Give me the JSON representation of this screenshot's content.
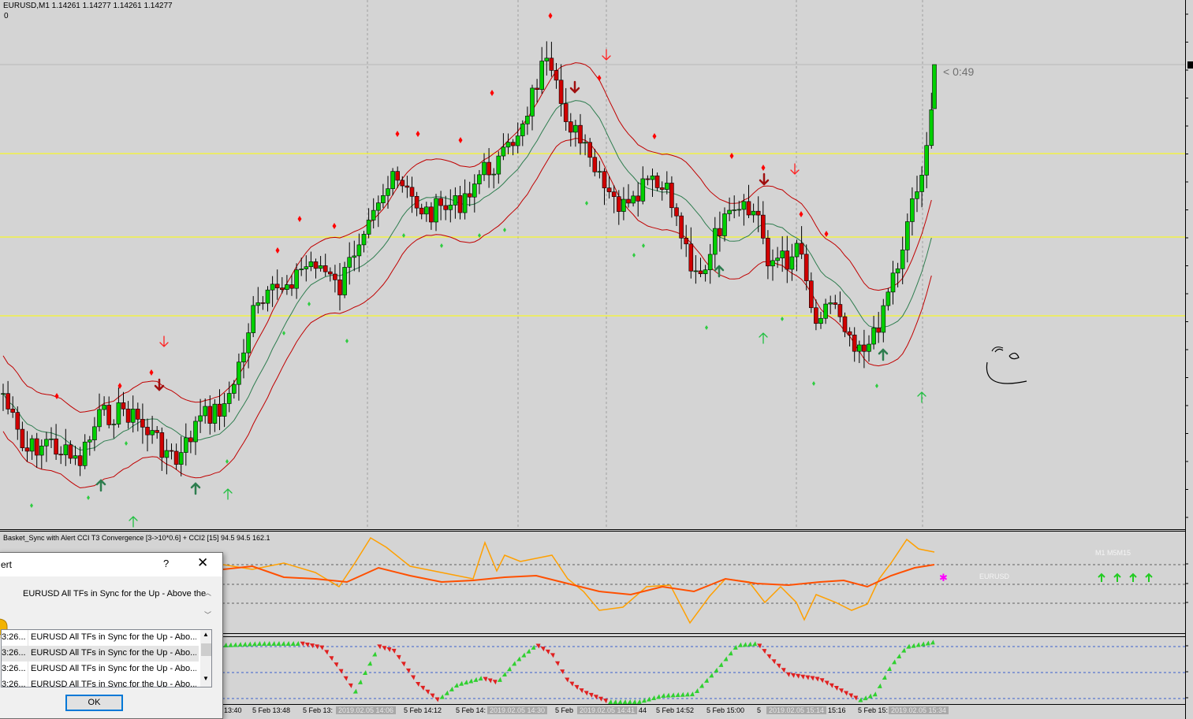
{
  "header": {
    "symbol_line": "EURUSD,M1  1.14261 1.14277 1.14261 1.14277",
    "sub_line": "0"
  },
  "countdown": "< 0:49",
  "indicator": {
    "label": "Basket_Sync with Alert  CCI T3 Convergence [3->10*0.6] + CCI2 [15] 94.5 94.5 162.1",
    "timeframes_label": "M1  M5M15",
    "symbol_label": "EURUSD"
  },
  "time_axis": [
    {
      "text": "13:40",
      "hl": false
    },
    {
      "text": "5 Feb 13:48",
      "hl": false
    },
    {
      "text": "5 Feb 13:",
      "hl": false
    },
    {
      "text": "2019.02.05 14:06",
      "hl": true
    },
    {
      "text": "5 Feb 14:12",
      "hl": false
    },
    {
      "text": "5 Feb 14:",
      "hl": false
    },
    {
      "text": "2019.02.05 14:30",
      "hl": true
    },
    {
      "text": "5 Feb",
      "hl": false
    },
    {
      "text": "2019.02.05 14:41",
      "hl": true
    },
    {
      "text": "44",
      "hl": false
    },
    {
      "text": "5 Feb 14:52",
      "hl": false
    },
    {
      "text": "5 Feb 15:00",
      "hl": false
    },
    {
      "text": "5",
      "hl": false
    },
    {
      "text": "2019.02.05 15:14",
      "hl": true
    },
    {
      "text": "15:16",
      "hl": false
    },
    {
      "text": "5 Feb 15:",
      "hl": false
    },
    {
      "text": "2019.02.05 15:34",
      "hl": true
    }
  ],
  "alert": {
    "title": "ert",
    "help": "?",
    "close": "✕",
    "message": "EURUSD All TFs in Sync for the Up - Above the",
    "rows": [
      {
        "time": "3:26...",
        "text": "EURUSD All TFs in Sync for the Up - Abo..."
      },
      {
        "time": "3:26...",
        "text": "EURUSD All TFs in Sync for the Up - Abo..."
      },
      {
        "time": "3:26...",
        "text": "EURUSD All TFs in Sync for the Up - Abo..."
      },
      {
        "time": "3:26...",
        "text": "EURUSD All TFs in Sync for the Up - Abo..."
      }
    ],
    "ok": "OK"
  },
  "colors": {
    "background": "#d4d4d4",
    "bull": "#00d000",
    "bear": "#d00000",
    "band": "#c00000",
    "ma": "#2e7d4f",
    "level": "#ffff00",
    "cci_fast": "#ffa000",
    "cci_slow": "#ff5000"
  }
}
